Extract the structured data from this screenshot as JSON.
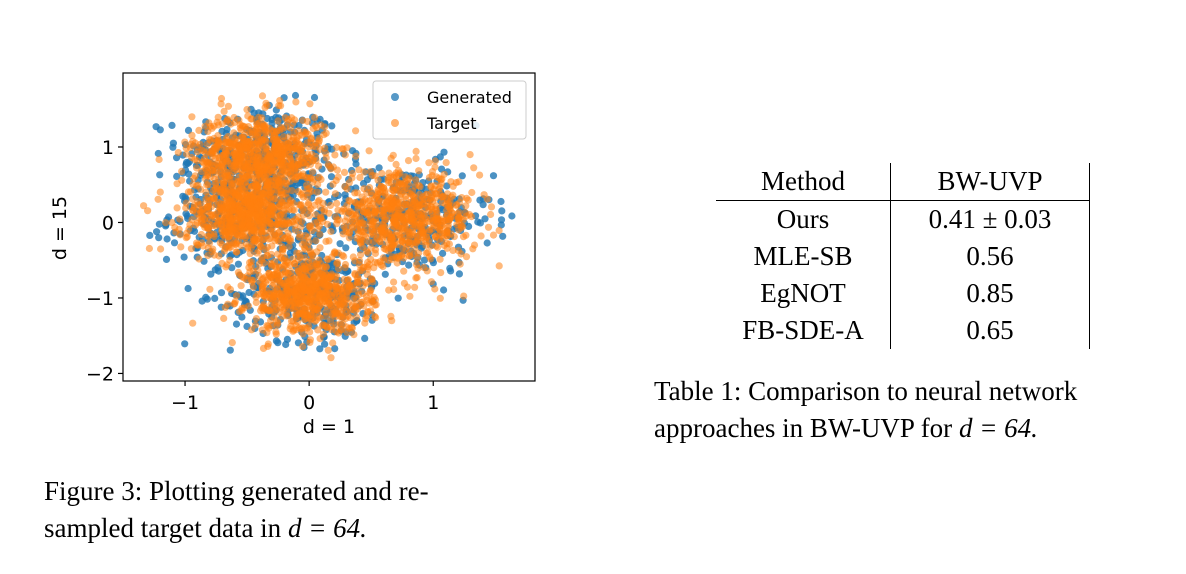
{
  "chart_data": {
    "type": "scatter",
    "title": "",
    "xlabel": "d = 1",
    "ylabel": "d = 15",
    "xlim": [
      -1.5,
      1.82
    ],
    "ylim": [
      -2.1,
      1.98
    ],
    "xticks": [
      -1,
      0,
      1
    ],
    "yticks": [
      -2,
      -1,
      0,
      1
    ],
    "xtick_labels": [
      "−1",
      "0",
      "1"
    ],
    "ytick_labels": [
      "−2",
      "−1",
      "0",
      "1"
    ],
    "legend_position": "top-right",
    "colors": {
      "Generated": "#1f77b4",
      "Target": "#ff7f0e"
    },
    "clusters": [
      {
        "center": [
          -0.4,
          0.9
        ],
        "spread": 0.27
      },
      {
        "center": [
          -0.5,
          0.1
        ],
        "spread": 0.26
      },
      {
        "center": [
          0.75,
          0.05
        ],
        "spread": 0.3
      },
      {
        "center": [
          0.0,
          -0.95
        ],
        "spread": 0.26
      }
    ],
    "series": [
      {
        "name": "Generated"
      },
      {
        "name": "Target"
      }
    ]
  },
  "figure": {
    "caption_lead": "Figure 3:  Plotting generated and re-",
    "caption_tail": "sampled target data in ",
    "caption_math": "d = 64."
  },
  "table": {
    "headers": [
      "Method",
      "BW-UVP"
    ],
    "rows": [
      {
        "method": "Ours",
        "value": "0.41 ± 0.03"
      },
      {
        "method": "MLE-SB",
        "value": "0.56"
      },
      {
        "method": "EgNOT",
        "value": "0.85"
      },
      {
        "method": "FB-SDE-A",
        "value": "0.65"
      }
    ],
    "caption_lead": "Table 1:  Comparison to neural network",
    "caption_tail": "approaches in BW-UVP for ",
    "caption_math": "d = 64."
  }
}
